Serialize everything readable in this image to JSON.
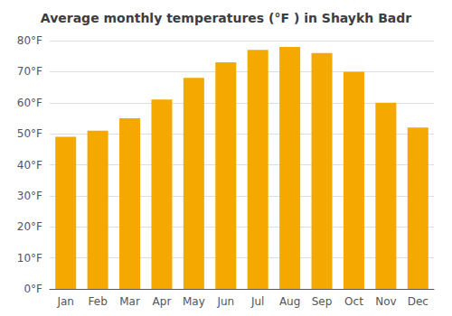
{
  "chart_data": {
    "type": "bar",
    "title": "Average monthly temperatures (°F ) in Shaykh Badr",
    "categories": [
      "Jan",
      "Feb",
      "Mar",
      "Apr",
      "May",
      "Jun",
      "Jul",
      "Aug",
      "Sep",
      "Oct",
      "Nov",
      "Dec"
    ],
    "values": [
      49,
      51,
      55,
      61,
      68,
      73,
      77,
      78,
      76,
      70,
      60,
      52
    ],
    "color": "#F5A800",
    "ylim": [
      0,
      80
    ],
    "yticks": [
      {
        "value": 0,
        "label": "0°F"
      },
      {
        "value": 10,
        "label": "10°F"
      },
      {
        "value": 20,
        "label": "20°F"
      },
      {
        "value": 30,
        "label": "30°F"
      },
      {
        "value": 40,
        "label": "40°F"
      },
      {
        "value": 50,
        "label": "50°F"
      },
      {
        "value": 60,
        "label": "60°F"
      },
      {
        "value": 70,
        "label": "70°F"
      },
      {
        "value": 80,
        "label": "80°F"
      }
    ],
    "grid": true
  }
}
